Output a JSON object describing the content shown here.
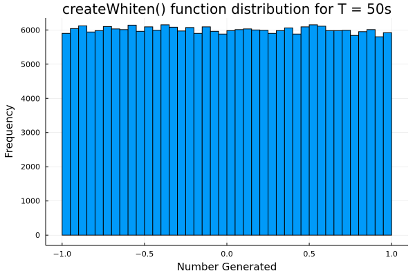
{
  "chart_data": {
    "type": "bar",
    "title": "createWhiten() function distribution for T = 50s",
    "xlabel": "Number Generated",
    "ylabel": "Frequency",
    "xlim": [
      -1.1,
      1.1
    ],
    "ylim": [
      -300,
      6350
    ],
    "x_ticks": [
      {
        "value": -1.0,
        "label": "−1.0"
      },
      {
        "value": -0.5,
        "label": "−0.5"
      },
      {
        "value": 0.0,
        "label": "0.0"
      },
      {
        "value": 0.5,
        "label": "0.5"
      },
      {
        "value": 1.0,
        "label": "1.0"
      }
    ],
    "y_ticks": [
      {
        "value": 0,
        "label": "0"
      },
      {
        "value": 1000,
        "label": "1000"
      },
      {
        "value": 2000,
        "label": "2000"
      },
      {
        "value": 3000,
        "label": "3000"
      },
      {
        "value": 4000,
        "label": "4000"
      },
      {
        "value": 5000,
        "label": "5000"
      },
      {
        "value": 6000,
        "label": "6000"
      }
    ],
    "grid": true,
    "bar_color": "#009AF9",
    "bins": {
      "start": -1.0,
      "width": 0.05,
      "values": [
        5900,
        6040,
        6120,
        5940,
        5980,
        6100,
        6030,
        6010,
        6140,
        5960,
        6090,
        5990,
        6150,
        6080,
        5970,
        6070,
        5900,
        6090,
        5960,
        5880,
        5980,
        6010,
        6030,
        6000,
        5990,
        5900,
        5980,
        6060,
        5880,
        6090,
        6150,
        6110,
        5980,
        5980,
        5990,
        5840,
        5950,
        6010,
        5800,
        5920
      ]
    }
  }
}
